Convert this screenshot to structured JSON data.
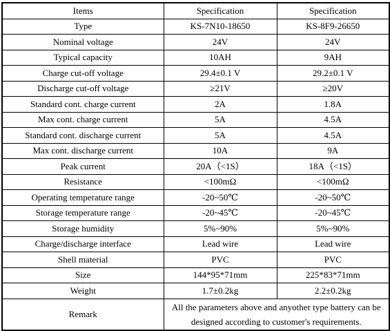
{
  "table": {
    "header": [
      "Items",
      "Specification",
      "Specification"
    ],
    "rows": [
      [
        "Type",
        "KS-7N10-18650",
        "KS-8F9-26650"
      ],
      [
        "Nominal voltage",
        "24V",
        "24V"
      ],
      [
        "Typical capacity",
        "10AH",
        "9AH"
      ],
      [
        "Charge cut-off voltage",
        "29.4±0.1 V",
        "29.2±0.1 V"
      ],
      [
        "Discharge cut-off voltage",
        "≥21V",
        "≥20V"
      ],
      [
        "Standard cont. charge current",
        "2A",
        "1.8A"
      ],
      [
        "Max cont. charge current",
        "5A",
        "4.5A"
      ],
      [
        "Standard cont. discharge current",
        "5A",
        "4.5A"
      ],
      [
        "Max cont. discharge current",
        "10A",
        "9A"
      ],
      [
        "Peak current",
        "20A（<1S）",
        "18A（<1S）"
      ],
      [
        "Resistance",
        "<100mΩ",
        "<100mΩ"
      ],
      [
        "Operating temperature range",
        "-20~50℃",
        "-20~50℃"
      ],
      [
        "Storage temperature range",
        "-20~45℃",
        "-20~45℃"
      ],
      [
        "Storage humidity",
        "5%~90%",
        "5%~90%"
      ],
      [
        "Charge/discharge interface",
        "Lead wire",
        "Lead wire"
      ],
      [
        "Shell material",
        "PVC",
        "PVC"
      ],
      [
        "Size",
        "144*95*71mm",
        "225*83*71mm"
      ],
      [
        "Weight",
        "1.7±0.2kg",
        "2.2±0.2kg"
      ]
    ],
    "remark": {
      "label": "Remark",
      "text": "All the parameters above and anyother type battery can be designed according to customer's requirements."
    }
  }
}
